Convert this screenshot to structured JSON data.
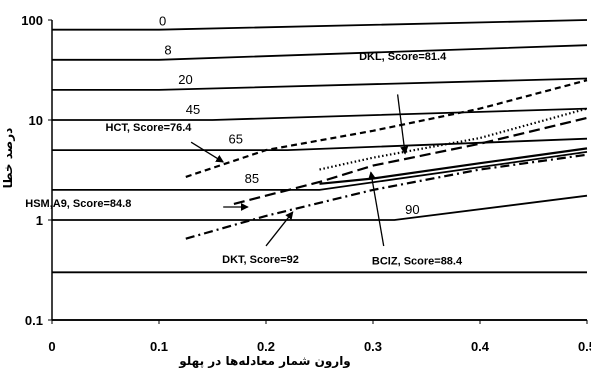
{
  "chart_data": {
    "type": "line",
    "title": "",
    "xlabel": "وارون شمار معادله‌ها در پهلو",
    "ylabel": "درصد خطا",
    "x_range": [
      0,
      0.5
    ],
    "y_range": [
      0.1,
      100
    ],
    "y_scale": "log",
    "x_ticks": [
      "0",
      "0.1",
      "0.2",
      "0.3",
      "0.4",
      "0.5"
    ],
    "y_ticks": [
      "0.1",
      "1",
      "10",
      "100"
    ],
    "grid": false,
    "reference_curves": [
      {
        "label": "0",
        "x": [
          0,
          0.1,
          0.5
        ],
        "y": [
          80,
          80,
          100
        ]
      },
      {
        "label": "8",
        "x": [
          0,
          0.1,
          0.5
        ],
        "y": [
          40,
          40,
          56
        ]
      },
      {
        "label": "20",
        "x": [
          0,
          0.1,
          0.5
        ],
        "y": [
          20,
          20,
          26
        ]
      },
      {
        "label": "45",
        "x": [
          0,
          0.15,
          0.5
        ],
        "y": [
          10,
          10,
          13
        ]
      },
      {
        "label": "65",
        "x": [
          0,
          0.22,
          0.5
        ],
        "y": [
          5,
          5,
          6.5
        ]
      },
      {
        "label": "85",
        "x": [
          0,
          0.25,
          0.5
        ],
        "y": [
          2,
          2,
          4.8
        ]
      },
      {
        "label": "90",
        "x": [
          0,
          0.32,
          0.5
        ],
        "y": [
          1,
          1,
          1.75
        ]
      },
      {
        "label": "",
        "x": [
          0,
          0.5
        ],
        "y": [
          0.3,
          0.3
        ]
      },
      {
        "label": "",
        "x": [
          0,
          0.5
        ],
        "y": [
          0.1,
          0.1
        ]
      }
    ],
    "series": [
      {
        "name": "HCT, Score=76.4",
        "style": "dashed",
        "x": [
          0.125,
          0.2,
          0.3,
          0.4,
          0.5
        ],
        "y": [
          2.7,
          5.0,
          7.8,
          13.0,
          25.0
        ]
      },
      {
        "name": "DKL, Score=81.4",
        "style": "dotted",
        "x": [
          0.25,
          0.3,
          0.4,
          0.5
        ],
        "y": [
          3.2,
          4.2,
          6.6,
          13.0
        ]
      },
      {
        "name": "HSM,A9, Score=84.8",
        "style": "long-dashed",
        "x": [
          0.17,
          0.25,
          0.3,
          0.4,
          0.5
        ],
        "y": [
          1.45,
          2.4,
          3.5,
          5.8,
          10.5
        ]
      },
      {
        "name": "BCIZ, Score=88.4",
        "style": "solid",
        "x": [
          0.25,
          0.3,
          0.4,
          0.5
        ],
        "y": [
          2.3,
          2.6,
          3.7,
          5.2
        ]
      },
      {
        "name": "DKT, Score=92",
        "style": "dash-dot",
        "x": [
          0.125,
          0.2,
          0.3,
          0.4,
          0.5
        ],
        "y": [
          0.65,
          1.1,
          2.0,
          3.2,
          4.5
        ]
      }
    ],
    "annotations": [
      {
        "text": "DKL, Score=81.4",
        "at": [
          0.287,
          40
        ]
      },
      {
        "text": "HCT, Score=76.4",
        "at": [
          0.05,
          7.8
        ]
      },
      {
        "text": "HSM,A9, Score=84.8",
        "at": [
          -0.025,
          1.35
        ]
      },
      {
        "text": "DKT, Score=92",
        "at": [
          0.159,
          0.37
        ]
      },
      {
        "text": "BCIZ, Score=88.4",
        "at": [
          0.299,
          0.36
        ]
      }
    ],
    "arrows": [
      {
        "from": [
          0.323,
          18
        ],
        "to": [
          0.33,
          4.6
        ]
      },
      {
        "from": [
          0.13,
          6.0
        ],
        "to": [
          0.16,
          3.8
        ]
      },
      {
        "from": [
          0.16,
          1.35
        ],
        "to": [
          0.183,
          1.35
        ]
      },
      {
        "from": [
          0.2,
          0.55
        ],
        "to": [
          0.225,
          1.2
        ]
      },
      {
        "from": [
          0.31,
          0.55
        ],
        "to": [
          0.298,
          3.0
        ]
      }
    ]
  }
}
